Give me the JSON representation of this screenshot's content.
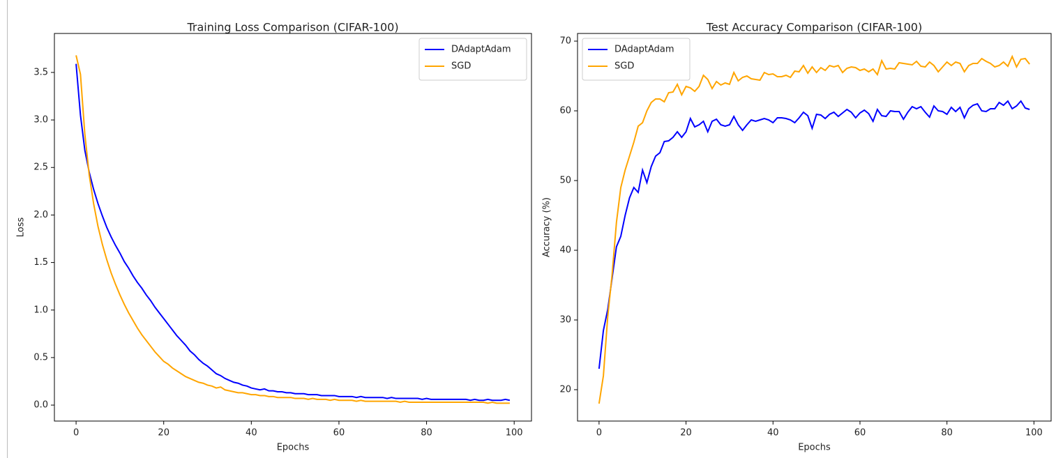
{
  "chart_data": [
    {
      "type": "line",
      "title": "Training Loss Comparison (CIFAR-100)",
      "xlabel": "Epochs",
      "ylabel": "Loss",
      "legend": "upper right",
      "x": [
        0,
        1,
        2,
        3,
        4,
        5,
        6,
        7,
        8,
        9,
        10,
        11,
        12,
        13,
        14,
        15,
        16,
        17,
        18,
        19,
        20,
        21,
        22,
        23,
        24,
        25,
        26,
        27,
        28,
        29,
        30,
        31,
        32,
        33,
        34,
        35,
        36,
        37,
        38,
        39,
        40,
        41,
        42,
        43,
        44,
        45,
        46,
        47,
        48,
        49,
        50,
        51,
        52,
        53,
        54,
        55,
        56,
        57,
        58,
        59,
        60,
        61,
        62,
        63,
        64,
        65,
        66,
        67,
        68,
        69,
        70,
        71,
        72,
        73,
        74,
        75,
        76,
        77,
        78,
        79,
        80,
        81,
        82,
        83,
        84,
        85,
        86,
        87,
        88,
        89,
        90,
        91,
        92,
        93,
        94,
        95,
        96,
        97,
        98,
        99
      ],
      "series": [
        {
          "name": "DAdaptAdam",
          "color": "#0000ff",
          "values": [
            3.59,
            3.05,
            2.68,
            2.45,
            2.27,
            2.12,
            1.99,
            1.87,
            1.77,
            1.68,
            1.6,
            1.51,
            1.44,
            1.36,
            1.29,
            1.23,
            1.16,
            1.1,
            1.03,
            0.97,
            0.91,
            0.85,
            0.79,
            0.73,
            0.68,
            0.63,
            0.57,
            0.53,
            0.48,
            0.44,
            0.41,
            0.37,
            0.33,
            0.31,
            0.28,
            0.26,
            0.24,
            0.23,
            0.21,
            0.2,
            0.18,
            0.17,
            0.16,
            0.17,
            0.15,
            0.15,
            0.14,
            0.14,
            0.13,
            0.13,
            0.12,
            0.12,
            0.12,
            0.11,
            0.11,
            0.11,
            0.1,
            0.1,
            0.1,
            0.1,
            0.09,
            0.09,
            0.09,
            0.09,
            0.08,
            0.09,
            0.08,
            0.08,
            0.08,
            0.08,
            0.08,
            0.07,
            0.08,
            0.07,
            0.07,
            0.07,
            0.07,
            0.07,
            0.07,
            0.06,
            0.07,
            0.06,
            0.06,
            0.06,
            0.06,
            0.06,
            0.06,
            0.06,
            0.06,
            0.06,
            0.05,
            0.06,
            0.05,
            0.05,
            0.06,
            0.05,
            0.05,
            0.05,
            0.06,
            0.05
          ]
        },
        {
          "name": "SGD",
          "color": "#ffa500",
          "values": [
            3.68,
            3.48,
            2.85,
            2.42,
            2.12,
            1.88,
            1.69,
            1.53,
            1.39,
            1.27,
            1.16,
            1.06,
            0.97,
            0.89,
            0.81,
            0.74,
            0.68,
            0.62,
            0.56,
            0.51,
            0.46,
            0.43,
            0.39,
            0.36,
            0.33,
            0.3,
            0.28,
            0.26,
            0.24,
            0.23,
            0.21,
            0.2,
            0.18,
            0.19,
            0.16,
            0.15,
            0.14,
            0.13,
            0.13,
            0.12,
            0.11,
            0.11,
            0.1,
            0.1,
            0.09,
            0.09,
            0.08,
            0.08,
            0.08,
            0.08,
            0.07,
            0.07,
            0.07,
            0.06,
            0.07,
            0.06,
            0.06,
            0.06,
            0.05,
            0.06,
            0.05,
            0.05,
            0.05,
            0.05,
            0.04,
            0.05,
            0.04,
            0.04,
            0.04,
            0.04,
            0.04,
            0.04,
            0.04,
            0.04,
            0.03,
            0.04,
            0.03,
            0.03,
            0.03,
            0.03,
            0.03,
            0.03,
            0.03,
            0.03,
            0.03,
            0.03,
            0.03,
            0.03,
            0.03,
            0.03,
            0.03,
            0.03,
            0.03,
            0.03,
            0.02,
            0.03,
            0.02,
            0.02,
            0.02,
            0.02
          ]
        }
      ],
      "xlim": [
        -4.95,
        103.95
      ],
      "xticks": [
        0,
        20,
        40,
        60,
        80,
        100
      ],
      "ylim": [
        -0.168,
        3.91
      ],
      "yticks": [
        {
          "value": 0,
          "label": "0.0"
        },
        0.5,
        {
          "value": 1,
          "label": "1.0"
        },
        1.5,
        {
          "value": 2,
          "label": "2.0"
        },
        2.5,
        {
          "value": 3,
          "label": "3.0"
        },
        3.5
      ]
    },
    {
      "type": "line",
      "title": "Test Accuracy Comparison (CIFAR-100)",
      "xlabel": "Epochs",
      "ylabel": "Accuracy (%)",
      "legend": "upper left",
      "x": [
        0,
        1,
        2,
        3,
        4,
        5,
        6,
        7,
        8,
        9,
        10,
        11,
        12,
        13,
        14,
        15,
        16,
        17,
        18,
        19,
        20,
        21,
        22,
        23,
        24,
        25,
        26,
        27,
        28,
        29,
        30,
        31,
        32,
        33,
        34,
        35,
        36,
        37,
        38,
        39,
        40,
        41,
        42,
        43,
        44,
        45,
        46,
        47,
        48,
        49,
        50,
        51,
        52,
        53,
        54,
        55,
        56,
        57,
        58,
        59,
        60,
        61,
        62,
        63,
        64,
        65,
        66,
        67,
        68,
        69,
        70,
        71,
        72,
        73,
        74,
        75,
        76,
        77,
        78,
        79,
        80,
        81,
        82,
        83,
        84,
        85,
        86,
        87,
        88,
        89,
        90,
        91,
        92,
        93,
        94,
        95,
        96,
        97,
        98,
        99
      ],
      "series": [
        {
          "name": "DAdaptAdam",
          "color": "#0000ff",
          "values": [
            23.0,
            28.5,
            31.5,
            36.0,
            40.5,
            42.0,
            45.0,
            47.5,
            49.0,
            48.3,
            51.5,
            49.7,
            52.0,
            53.5,
            54.0,
            55.6,
            55.7,
            56.2,
            57.0,
            56.2,
            57.0,
            58.9,
            57.7,
            58.0,
            58.5,
            57.0,
            58.5,
            58.8,
            58.0,
            57.8,
            58.0,
            59.2,
            58.0,
            57.2,
            58.0,
            58.7,
            58.5,
            58.7,
            58.9,
            58.7,
            58.3,
            59.0,
            59.0,
            58.9,
            58.7,
            58.3,
            59.0,
            59.8,
            59.3,
            57.5,
            59.5,
            59.4,
            58.9,
            59.5,
            59.8,
            59.2,
            59.7,
            60.2,
            59.8,
            59.0,
            59.7,
            60.1,
            59.6,
            58.5,
            60.2,
            59.3,
            59.2,
            60.0,
            59.9,
            59.9,
            58.8,
            59.8,
            60.6,
            60.3,
            60.6,
            59.8,
            59.1,
            60.7,
            60.0,
            59.9,
            59.5,
            60.5,
            59.9,
            60.5,
            59.0,
            60.3,
            60.8,
            61.0,
            60.0,
            59.9,
            60.3,
            60.3,
            61.2,
            60.8,
            61.4,
            60.3,
            60.7,
            61.4,
            60.4,
            60.2
          ]
        },
        {
          "name": "SGD",
          "color": "#ffa500",
          "values": [
            18.0,
            22.0,
            30.5,
            36.5,
            44.0,
            49.0,
            51.5,
            53.5,
            55.5,
            57.8,
            58.3,
            60.0,
            61.2,
            61.7,
            61.7,
            61.3,
            62.6,
            62.7,
            63.8,
            62.3,
            63.5,
            63.3,
            62.8,
            63.5,
            65.1,
            64.5,
            63.2,
            64.2,
            63.7,
            64.0,
            63.8,
            65.5,
            64.3,
            64.8,
            65.0,
            64.6,
            64.5,
            64.4,
            65.5,
            65.2,
            65.3,
            64.9,
            64.9,
            65.1,
            64.8,
            65.7,
            65.6,
            66.5,
            65.4,
            66.3,
            65.5,
            66.2,
            65.8,
            66.5,
            66.3,
            66.5,
            65.5,
            66.1,
            66.3,
            66.2,
            65.8,
            66.0,
            65.6,
            66.0,
            65.2,
            67.2,
            66.0,
            66.1,
            66.0,
            66.9,
            66.8,
            66.7,
            66.6,
            67.1,
            66.4,
            66.3,
            67.0,
            66.5,
            65.6,
            66.3,
            67.0,
            66.5,
            67.0,
            66.8,
            65.6,
            66.5,
            66.8,
            66.8,
            67.5,
            67.1,
            66.8,
            66.3,
            66.5,
            67.0,
            66.4,
            67.8,
            66.3,
            67.4,
            67.5,
            66.7
          ]
        }
      ],
      "xlim": [
        -4.95,
        103.95
      ],
      "xticks": [
        0,
        20,
        40,
        60,
        80,
        100
      ],
      "ylim": [
        15.5,
        71.1
      ],
      "yticks": [
        20,
        30,
        40,
        50,
        60,
        70
      ]
    }
  ]
}
